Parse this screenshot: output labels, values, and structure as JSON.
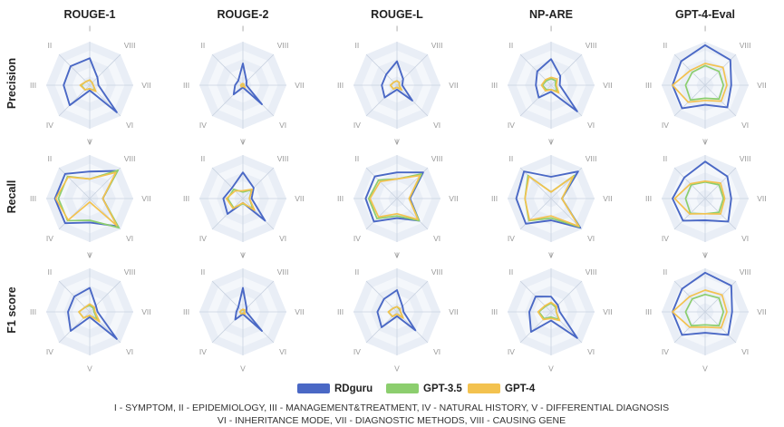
{
  "colors": {
    "RDguru": "#4a68c5",
    "GPT-3.5": "#8cce6e",
    "GPT-4": "#f3c24f",
    "band_light": "#f4f7fb",
    "band_dark": "#e9eef6",
    "axis_line": "#c9d2e0"
  },
  "metrics": [
    "ROUGE-1",
    "ROUGE-2",
    "ROUGE-L",
    "NP-ARE",
    "GPT-4-Eval"
  ],
  "row_labels": [
    "Precision",
    "Recall",
    "F1 score"
  ],
  "axis_labels": [
    "I",
    "II",
    "III",
    "IV",
    "V",
    "VI",
    "VII",
    "VIII"
  ],
  "legend": [
    "RDguru",
    "GPT-3.5",
    "GPT-4"
  ],
  "footnote": {
    "line1": "I - SYMPTOM, II - EPIDEMIOLOGY, III - MANAGEMENT&TREATMENT, IV - NATURAL HISTORY, V - DIFFERENTIAL DIAGNOSIS",
    "line2": "VI - INHERITANCE MODE, VII - DIAGNOSTIC METHODS, VIII - CAUSING GENE"
  },
  "chart_data": {
    "type": "radar",
    "rlim": [
      0,
      1
    ],
    "grid": true,
    "legend_position": "bottom",
    "axes_order": [
      "I",
      "II",
      "III",
      "IV",
      "V",
      "VI",
      "VII",
      "VIII"
    ],
    "charts": [
      {
        "row": "Precision",
        "metric": "ROUGE-1",
        "series": [
          {
            "name": "RDguru",
            "values": [
              0.62,
              0.62,
              0.6,
              0.65,
              0.12,
              0.88,
              0.2,
              0.25
            ]
          },
          {
            "name": "GPT-3.5",
            "values": [
              0.12,
              0.12,
              0.2,
              0.15,
              0.08,
              0.18,
              0.08,
              0.08
            ]
          },
          {
            "name": "GPT-4",
            "values": [
              0.12,
              0.12,
              0.22,
              0.15,
              0.08,
              0.2,
              0.08,
              0.08
            ]
          }
        ]
      },
      {
        "row": "Precision",
        "metric": "ROUGE-2",
        "series": [
          {
            "name": "RDguru",
            "values": [
              0.5,
              0.15,
              0.18,
              0.3,
              0.05,
              0.62,
              0.08,
              0.12
            ]
          },
          {
            "name": "GPT-3.5",
            "values": [
              0.03,
              0.03,
              0.05,
              0.05,
              0.02,
              0.06,
              0.02,
              0.03
            ]
          },
          {
            "name": "GPT-4",
            "values": [
              0.04,
              0.04,
              0.05,
              0.05,
              0.02,
              0.07,
              0.02,
              0.03
            ]
          }
        ]
      },
      {
        "row": "Precision",
        "metric": "ROUGE-L",
        "series": [
          {
            "name": "RDguru",
            "values": [
              0.55,
              0.35,
              0.35,
              0.4,
              0.1,
              0.5,
              0.12,
              0.2
            ]
          },
          {
            "name": "GPT-3.5",
            "values": [
              0.1,
              0.1,
              0.15,
              0.12,
              0.05,
              0.15,
              0.05,
              0.08
            ]
          },
          {
            "name": "GPT-4",
            "values": [
              0.1,
              0.1,
              0.15,
              0.12,
              0.05,
              0.15,
              0.05,
              0.08
            ]
          }
        ]
      },
      {
        "row": "Precision",
        "metric": "NP-ARE",
        "series": [
          {
            "name": "RDguru",
            "values": [
              0.6,
              0.45,
              0.35,
              0.4,
              0.15,
              0.85,
              0.2,
              0.3
            ]
          },
          {
            "name": "GPT-3.5",
            "values": [
              0.15,
              0.15,
              0.2,
              0.15,
              0.1,
              0.2,
              0.1,
              0.15
            ]
          },
          {
            "name": "GPT-4",
            "values": [
              0.18,
              0.18,
              0.22,
              0.18,
              0.1,
              0.25,
              0.12,
              0.2
            ]
          }
        ]
      },
      {
        "row": "Precision",
        "metric": "GPT-4-Eval",
        "series": [
          {
            "name": "RDguru",
            "values": [
              0.92,
              0.78,
              0.75,
              0.75,
              0.45,
              0.72,
              0.6,
              0.82
            ]
          },
          {
            "name": "GPT-3.5",
            "values": [
              0.45,
              0.42,
              0.45,
              0.48,
              0.3,
              0.45,
              0.42,
              0.45
            ]
          },
          {
            "name": "GPT-4",
            "values": [
              0.5,
              0.48,
              0.75,
              0.55,
              0.35,
              0.52,
              0.5,
              0.58
            ]
          }
        ]
      },
      {
        "row": "Recall",
        "metric": "ROUGE-1",
        "series": [
          {
            "name": "RDguru",
            "values": [
              0.62,
              0.8,
              0.8,
              0.8,
              0.55,
              0.9,
              0.3,
              0.9
            ]
          },
          {
            "name": "GPT-3.5",
            "values": [
              0.45,
              0.72,
              0.72,
              0.72,
              0.5,
              0.95,
              0.3,
              0.92
            ]
          },
          {
            "name": "GPT-4",
            "values": [
              0.45,
              0.7,
              0.78,
              0.7,
              0.08,
              0.88,
              0.3,
              0.85
            ]
          }
        ]
      },
      {
        "row": "Recall",
        "metric": "ROUGE-2",
        "series": [
          {
            "name": "RDguru",
            "values": [
              0.6,
              0.35,
              0.45,
              0.5,
              0.1,
              0.72,
              0.2,
              0.35
            ]
          },
          {
            "name": "GPT-3.5",
            "values": [
              0.15,
              0.3,
              0.35,
              0.3,
              0.12,
              0.32,
              0.15,
              0.28
            ]
          },
          {
            "name": "GPT-4",
            "values": [
              0.18,
              0.25,
              0.38,
              0.32,
              0.1,
              0.38,
              0.15,
              0.3
            ]
          }
        ]
      },
      {
        "row": "Recall",
        "metric": "ROUGE-L",
        "series": [
          {
            "name": "RDguru",
            "values": [
              0.6,
              0.72,
              0.72,
              0.75,
              0.45,
              0.72,
              0.3,
              0.85
            ]
          },
          {
            "name": "GPT-3.5",
            "values": [
              0.45,
              0.6,
              0.65,
              0.65,
              0.4,
              0.72,
              0.28,
              0.8
            ]
          },
          {
            "name": "GPT-4",
            "values": [
              0.45,
              0.55,
              0.62,
              0.6,
              0.35,
              0.68,
              0.28,
              0.75
            ]
          }
        ]
      },
      {
        "row": "Recall",
        "metric": "NP-ARE",
        "series": [
          {
            "name": "RDguru",
            "values": [
              0.5,
              0.88,
              0.8,
              0.82,
              0.5,
              0.95,
              0.25,
              0.88
            ]
          },
          {
            "name": "GPT-3.5",
            "values": [
              0.15,
              0.75,
              0.6,
              0.72,
              0.45,
              0.92,
              0.25,
              0.75
            ]
          },
          {
            "name": "GPT-4",
            "values": [
              0.15,
              0.72,
              0.6,
              0.7,
              0.4,
              0.9,
              0.25,
              0.72
            ]
          }
        ]
      },
      {
        "row": "Recall",
        "metric": "GPT-4-Eval",
        "series": [
          {
            "name": "RDguru",
            "values": [
              0.85,
              0.68,
              0.75,
              0.72,
              0.5,
              0.75,
              0.6,
              0.72
            ]
          },
          {
            "name": "GPT-3.5",
            "values": [
              0.38,
              0.45,
              0.45,
              0.48,
              0.35,
              0.45,
              0.42,
              0.45
            ]
          },
          {
            "name": "GPT-4",
            "values": [
              0.4,
              0.48,
              0.7,
              0.5,
              0.35,
              0.5,
              0.45,
              0.5
            ]
          }
        ]
      },
      {
        "row": "F1 score",
        "metric": "ROUGE-1",
        "series": [
          {
            "name": "RDguru",
            "values": [
              0.55,
              0.5,
              0.5,
              0.62,
              0.12,
              0.88,
              0.18,
              0.2
            ]
          },
          {
            "name": "GPT-3.5",
            "values": [
              0.15,
              0.15,
              0.25,
              0.2,
              0.08,
              0.25,
              0.1,
              0.12
            ]
          },
          {
            "name": "GPT-4",
            "values": [
              0.18,
              0.15,
              0.25,
              0.2,
              0.08,
              0.32,
              0.12,
              0.15
            ]
          }
        ]
      },
      {
        "row": "F1 score",
        "metric": "ROUGE-2",
        "series": [
          {
            "name": "RDguru",
            "values": [
              0.55,
              0.15,
              0.15,
              0.25,
              0.05,
              0.62,
              0.08,
              0.12
            ]
          },
          {
            "name": "GPT-3.5",
            "values": [
              0.05,
              0.05,
              0.06,
              0.06,
              0.03,
              0.06,
              0.03,
              0.05
            ]
          },
          {
            "name": "GPT-4",
            "values": [
              0.06,
              0.05,
              0.07,
              0.06,
              0.03,
              0.07,
              0.03,
              0.06
            ]
          }
        ]
      },
      {
        "row": "F1 score",
        "metric": "ROUGE-L",
        "series": [
          {
            "name": "RDguru",
            "values": [
              0.5,
              0.42,
              0.45,
              0.5,
              0.1,
              0.6,
              0.15,
              0.18
            ]
          },
          {
            "name": "GPT-3.5",
            "values": [
              0.12,
              0.12,
              0.2,
              0.15,
              0.05,
              0.2,
              0.08,
              0.08
            ]
          },
          {
            "name": "GPT-4",
            "values": [
              0.12,
              0.12,
              0.2,
              0.15,
              0.05,
              0.2,
              0.08,
              0.1
            ]
          }
        ]
      },
      {
        "row": "F1 score",
        "metric": "NP-ARE",
        "series": [
          {
            "name": "RDguru",
            "values": [
              0.35,
              0.5,
              0.5,
              0.65,
              0.2,
              0.85,
              0.2,
              0.22
            ]
          },
          {
            "name": "GPT-3.5",
            "values": [
              0.2,
              0.18,
              0.28,
              0.22,
              0.12,
              0.25,
              0.12,
              0.15
            ]
          },
          {
            "name": "GPT-4",
            "values": [
              0.22,
              0.2,
              0.3,
              0.25,
              0.15,
              0.28,
              0.12,
              0.18
            ]
          }
        ]
      },
      {
        "row": "F1 score",
        "metric": "GPT-4-Eval",
        "series": [
          {
            "name": "RDguru",
            "values": [
              0.9,
              0.75,
              0.75,
              0.75,
              0.48,
              0.75,
              0.62,
              0.85
            ]
          },
          {
            "name": "GPT-3.5",
            "values": [
              0.4,
              0.42,
              0.45,
              0.45,
              0.3,
              0.45,
              0.42,
              0.45
            ]
          },
          {
            "name": "GPT-4",
            "values": [
              0.5,
              0.5,
              0.75,
              0.5,
              0.35,
              0.52,
              0.5,
              0.55
            ]
          }
        ]
      }
    ]
  }
}
